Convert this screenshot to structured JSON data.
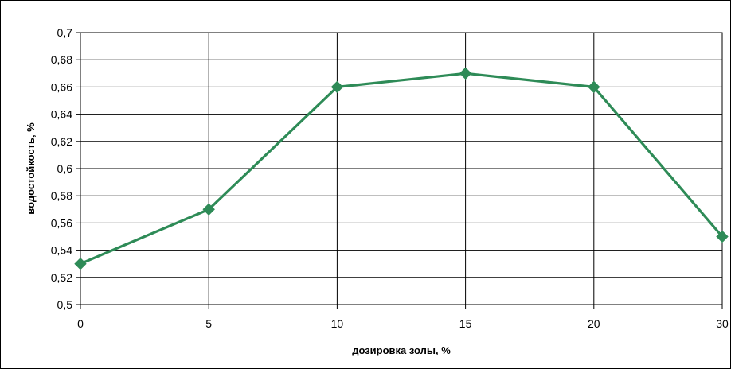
{
  "chart_data": {
    "type": "line",
    "title": "",
    "xlabel": "дозировка золы, %",
    "ylabel": "водостойкость, %",
    "categories": [
      "0",
      "5",
      "10",
      "15",
      "20",
      "30"
    ],
    "series": [
      {
        "values": [
          0.53,
          0.57,
          0.66,
          0.67,
          0.66,
          0.55
        ]
      }
    ],
    "ylim": [
      0.5,
      0.7
    ],
    "yticks": [
      "0,5",
      "0,52",
      "0,54",
      "0,56",
      "0,58",
      "0,6",
      "0,62",
      "0,64",
      "0,66",
      "0,68",
      "0,7"
    ],
    "grid": true,
    "legend": "none",
    "colors": {
      "line": "#2e8b57",
      "marker": "#2e8b57",
      "grid": "#000000",
      "axis": "#000000"
    }
  }
}
